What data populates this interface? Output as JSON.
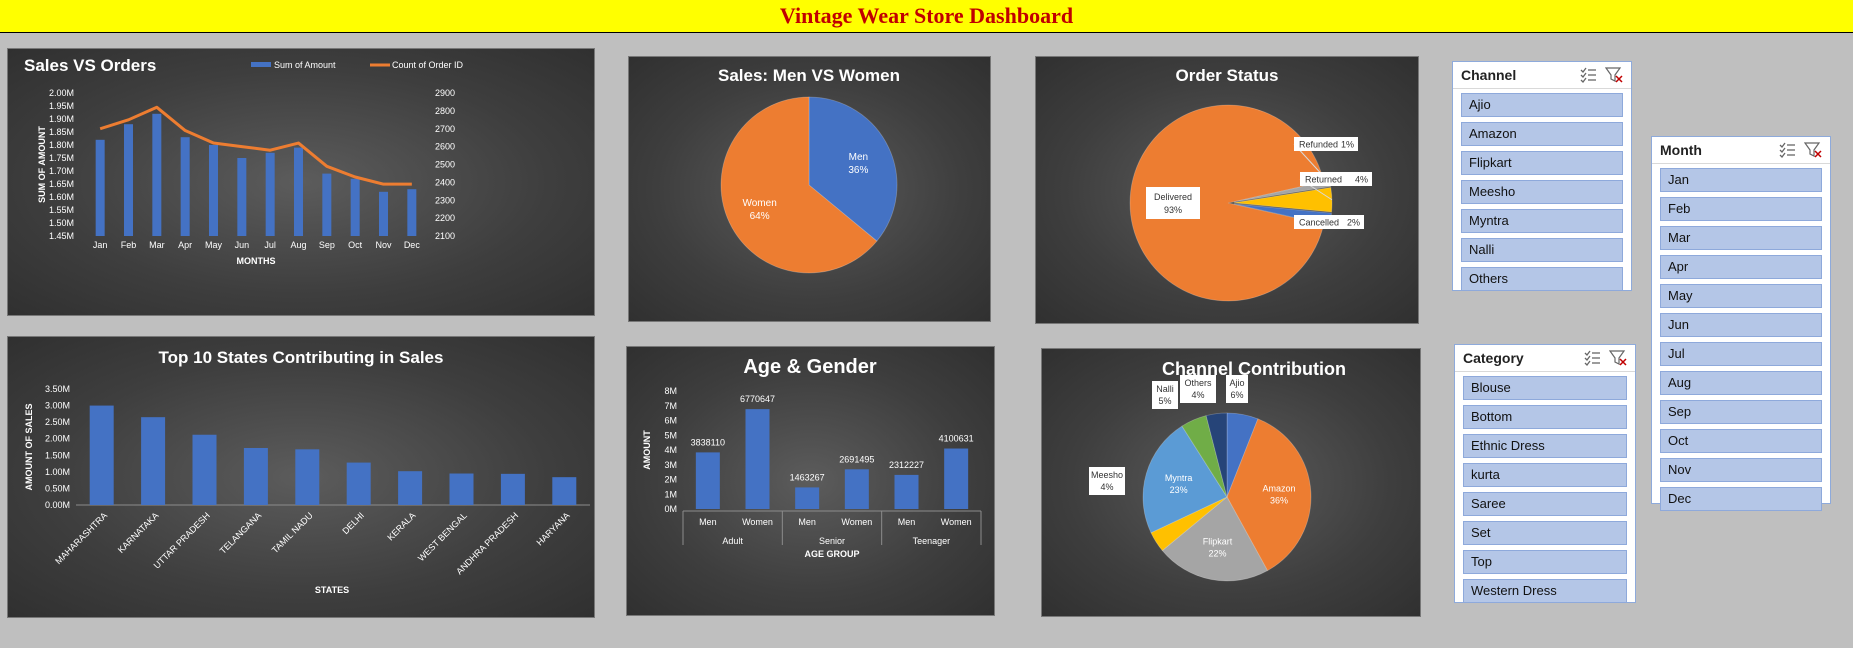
{
  "dashboard_title": "Vintage Wear Store Dashboard",
  "colors": {
    "blue": "#4472c4",
    "orange": "#ed7d31",
    "gray": "#a5a5a5",
    "yellow": "#ffc000",
    "lightblue": "#5b9bd5",
    "green": "#70ad47",
    "navy": "#264478"
  },
  "slicers": {
    "channel": {
      "title": "Channel",
      "items": [
        "Ajio",
        "Amazon",
        "Flipkart",
        "Meesho",
        "Myntra",
        "Nalli",
        "Others"
      ]
    },
    "month": {
      "title": "Month",
      "items": [
        "Jan",
        "Feb",
        "Mar",
        "Apr",
        "May",
        "Jun",
        "Jul",
        "Aug",
        "Sep",
        "Oct",
        "Nov",
        "Dec"
      ]
    },
    "category": {
      "title": "Category",
      "items": [
        "Blouse",
        "Bottom",
        "Ethnic Dress",
        "kurta",
        "Saree",
        "Set",
        "Top",
        "Western Dress"
      ]
    }
  },
  "chart_data": [
    {
      "id": "sales_orders",
      "type": "bar",
      "title": "Sales VS Orders",
      "categories": [
        "Jan",
        "Feb",
        "Mar",
        "Apr",
        "May",
        "Jun",
        "Jul",
        "Aug",
        "Sep",
        "Oct",
        "Nov",
        "Dec"
      ],
      "series": [
        {
          "name": "Sum of Amount",
          "type": "bar",
          "axis": "left",
          "values": [
            1.82,
            1.88,
            1.92,
            1.83,
            1.8,
            1.75,
            1.77,
            1.79,
            1.69,
            1.67,
            1.62,
            1.63
          ]
        },
        {
          "name": "Count of Order ID",
          "type": "line",
          "axis": "right",
          "values": [
            2700,
            2750,
            2820,
            2690,
            2620,
            2600,
            2580,
            2620,
            2490,
            2430,
            2390,
            2390
          ]
        }
      ],
      "xlabel": "MONTHS",
      "ylabel": "SUM OF AMOUNT",
      "ylim": [
        1.45,
        2.0
      ],
      "yticks": [
        "1.45M",
        "1.50M",
        "1.55M",
        "1.60M",
        "1.65M",
        "1.70M",
        "1.75M",
        "1.80M",
        "1.85M",
        "1.90M",
        "1.95M",
        "2.00M"
      ],
      "y2lim": [
        2100,
        2900
      ],
      "y2ticks": [
        "2100",
        "2200",
        "2300",
        "2400",
        "2500",
        "2600",
        "2700",
        "2800",
        "2900"
      ],
      "legend": "top-right"
    },
    {
      "id": "men_women",
      "type": "pie",
      "title": "Sales: Men VS Women",
      "labels": [
        "Men",
        "Women"
      ],
      "values": [
        36,
        64
      ],
      "value_labels": [
        "36%",
        "64%"
      ]
    },
    {
      "id": "order_status",
      "type": "pie",
      "title": "Order Status",
      "labels": [
        "Delivered",
        "Refunded",
        "Returned",
        "Cancelled"
      ],
      "values": [
        93,
        1,
        4,
        2
      ],
      "value_labels": [
        "93%",
        "1%",
        "4%",
        "2%"
      ]
    },
    {
      "id": "top_states",
      "type": "bar",
      "title": "Top 10 States Contributing in Sales",
      "categories": [
        "MAHARASHTRA",
        "KARNATAKA",
        "UTTAR PRADESH",
        "TELANGANA",
        "TAMIL NADU",
        "DELHI",
        "KERALA",
        "WEST BENGAL",
        "ANDHRA PRADESH",
        "HARYANA"
      ],
      "values": [
        3.0,
        2.65,
        2.12,
        1.72,
        1.68,
        1.28,
        1.02,
        0.95,
        0.94,
        0.84
      ],
      "xlabel": "STATES",
      "ylabel": "AMOUNT OF SALES",
      "ylim": [
        0,
        3.5
      ],
      "yticks": [
        "0.00M",
        "0.50M",
        "1.00M",
        "1.50M",
        "2.00M",
        "2.50M",
        "3.00M",
        "3.50M"
      ]
    },
    {
      "id": "age_gender",
      "type": "bar",
      "title": "Age & Gender",
      "groups": [
        "Adult",
        "Senior",
        "Teenager"
      ],
      "categories": [
        "Men",
        "Women",
        "Men",
        "Women",
        "Men",
        "Women"
      ],
      "values": [
        3838110,
        6770647,
        1463267,
        2691495,
        2312227,
        4100631
      ],
      "data_labels": [
        "3838110",
        "6770647",
        "1463267",
        "2691495",
        "2312227",
        "4100631"
      ],
      "xlabel": "AGE GROUP",
      "ylabel": "AMOUNT",
      "ylim": [
        0,
        8000000
      ],
      "yticks": [
        "0M",
        "1M",
        "2M",
        "3M",
        "4M",
        "5M",
        "6M",
        "7M",
        "8M"
      ]
    },
    {
      "id": "channel_contribution",
      "type": "pie",
      "title": "Channel Contribution",
      "labels": [
        "Ajio",
        "Amazon",
        "Flipkart",
        "Meesho",
        "Myntra",
        "Nalli",
        "Others"
      ],
      "values": [
        6,
        36,
        22,
        4,
        23,
        5,
        4
      ],
      "value_labels": [
        "6%",
        "36%",
        "22%",
        "4%",
        "23%",
        "5%",
        "4%"
      ]
    }
  ]
}
